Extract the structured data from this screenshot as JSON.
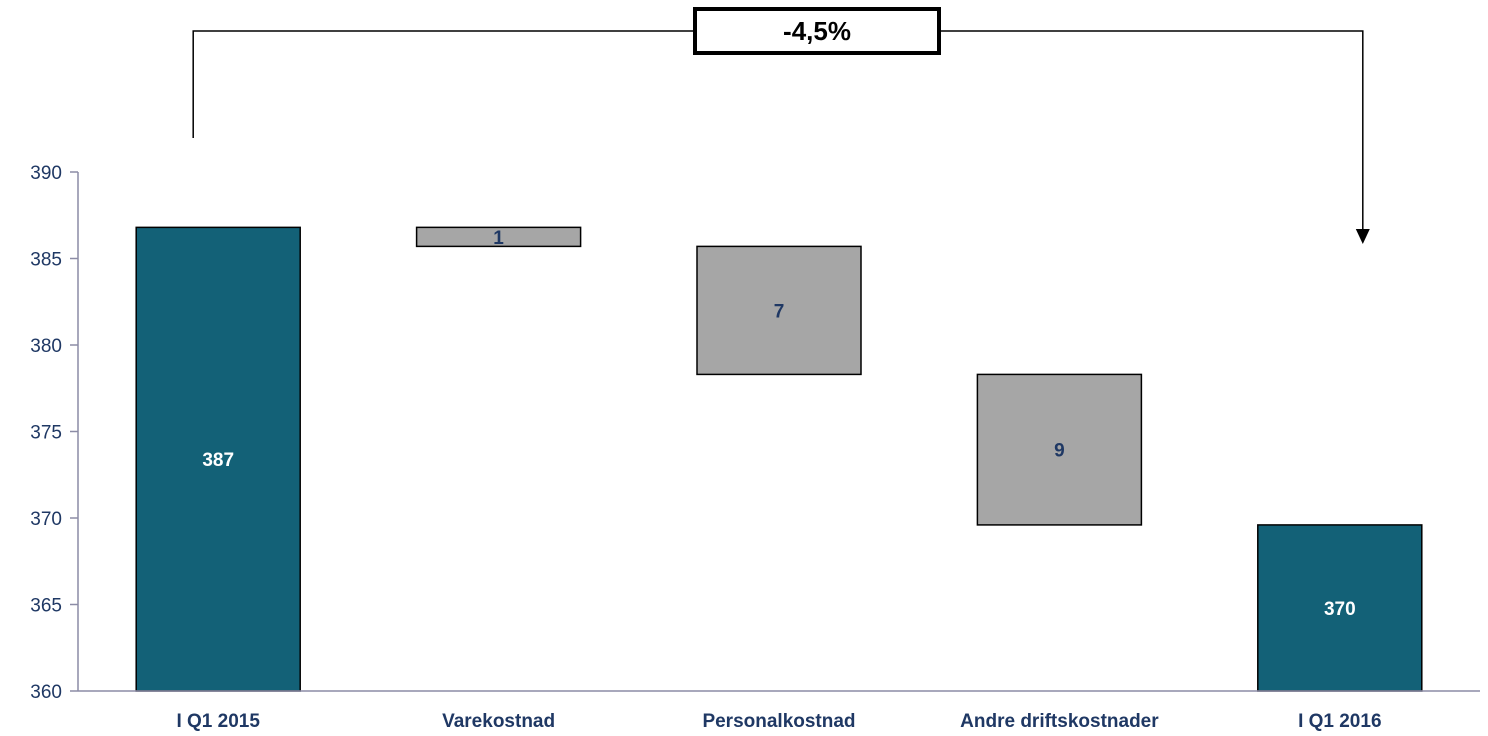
{
  "chart_data": {
    "type": "bar",
    "subtype": "waterfall",
    "title": "",
    "xlabel": "",
    "ylabel": "",
    "ylim": [
      360,
      390
    ],
    "yticks": [
      360,
      365,
      370,
      375,
      380,
      385,
      390
    ],
    "grid": false,
    "categories": [
      "I Q1 2015",
      "Varekostnad",
      "Personalkostnad",
      "Andre driftskostnader",
      "I Q1 2016"
    ],
    "bars": [
      {
        "category": "I Q1 2015",
        "kind": "total",
        "start": 360,
        "end": 386.8,
        "label": "387"
      },
      {
        "category": "Varekostnad",
        "kind": "decrease",
        "start": 386.8,
        "end": 385.7,
        "label": "1"
      },
      {
        "category": "Personalkostnad",
        "kind": "decrease",
        "start": 385.7,
        "end": 378.3,
        "label": "7"
      },
      {
        "category": "Andre driftskostnader",
        "kind": "decrease",
        "start": 378.3,
        "end": 369.6,
        "label": "9"
      },
      {
        "category": "I Q1 2016",
        "kind": "total",
        "start": 360,
        "end": 369.6,
        "label": "370"
      }
    ],
    "change_annotation": {
      "text": "-4,5%",
      "from": "I Q1 2015",
      "to": "I Q1 2016"
    },
    "colors": {
      "total": "#136177",
      "decrease": "#a6a6a6",
      "axis": "#8c8ca6",
      "tick_text": "#1f3864",
      "decrease_label": "#1f3864",
      "total_label": "#ffffff"
    }
  }
}
